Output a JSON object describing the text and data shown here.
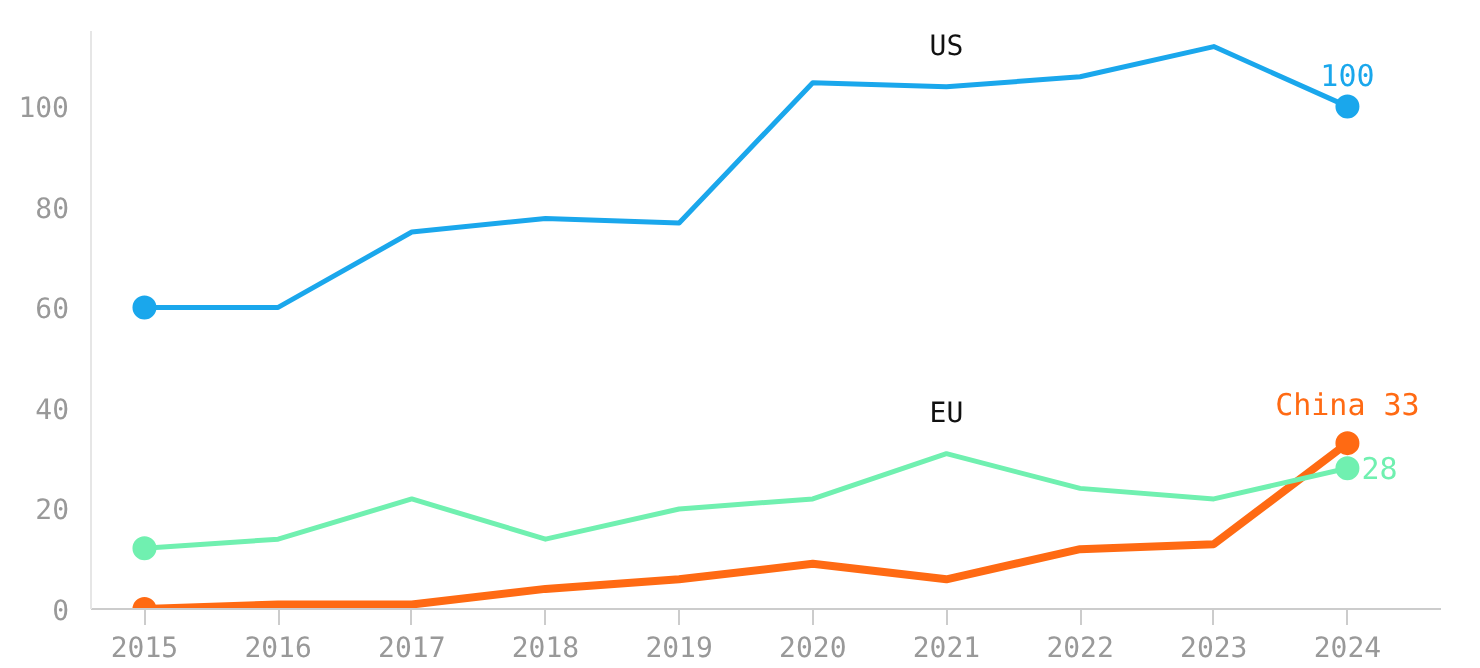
{
  "chart_data": {
    "type": "line",
    "x": [
      2015,
      2016,
      2017,
      2018,
      2019,
      2020,
      2021,
      2022,
      2023,
      2024
    ],
    "series": [
      {
        "name": "US",
        "color": "#1aa7ec",
        "values": [
          60,
          60,
          75,
          77.7,
          76.8,
          104.7,
          103.9,
          105.9,
          111.9,
          100
        ],
        "value_labels": [
          null,
          null,
          null,
          null,
          null,
          null,
          null,
          null,
          null,
          "100"
        ]
      },
      {
        "color": "#ff6a13",
        "values": [
          0,
          0.9,
          0.9,
          4,
          5.9,
          9,
          5.9,
          11.9,
          12.9,
          33
        ],
        "value_labels": [
          null,
          null,
          null,
          null,
          null,
          null,
          null,
          null,
          null,
          "China 33"
        ]
      },
      {
        "name": "EU",
        "color": "#70f0b0",
        "values": [
          12.1,
          13.9,
          21.9,
          13.9,
          19.9,
          21.9,
          30.9,
          24,
          21.9,
          28
        ],
        "value_labels": [
          null,
          null,
          null,
          null,
          null,
          null,
          null,
          null,
          null,
          "28"
        ]
      }
    ],
    "xlim": [
      2014.6,
      2024.7
    ],
    "ylim": [
      0,
      115
    ],
    "xticks": [
      2015,
      2016,
      2017,
      2018,
      2019,
      2020,
      2021,
      2022,
      2023,
      2024
    ],
    "yticks": [
      0,
      20,
      40,
      60,
      80,
      100
    ],
    "grid": false,
    "line_style": "solid"
  }
}
